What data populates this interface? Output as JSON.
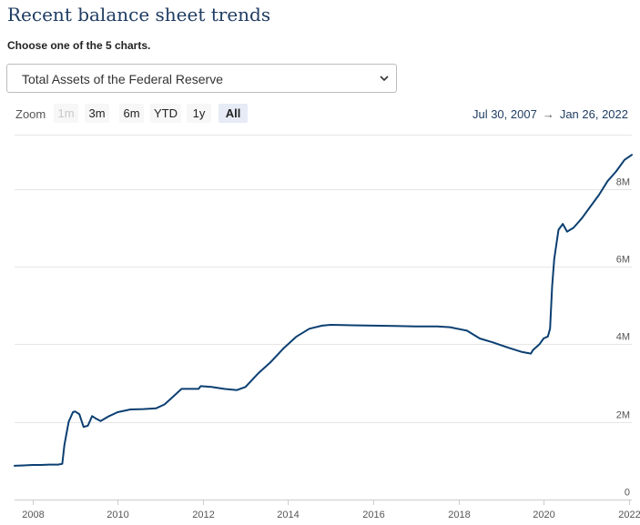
{
  "page": {
    "title": "Recent balance sheet trends",
    "subtitle": "Choose one of the 5 charts."
  },
  "selector": {
    "value": "Total Assets of the Federal Reserve",
    "icon": "chevron-down-icon"
  },
  "zoom": {
    "label": "Zoom",
    "buttons": [
      {
        "label": "1m",
        "state": "disabled"
      },
      {
        "label": "3m",
        "state": "normal"
      },
      {
        "label": "6m",
        "state": "normal"
      },
      {
        "label": "YTD",
        "state": "normal"
      },
      {
        "label": "1y",
        "state": "normal"
      },
      {
        "label": "All",
        "state": "selected"
      }
    ]
  },
  "range": {
    "from": "Jul 30, 2007",
    "arrow": "→",
    "to": "Jan 26, 2022"
  },
  "colors": {
    "line": "#0b3f71",
    "accent": "#1f3c62",
    "grid": "#e6e6e6"
  },
  "chart_data": {
    "type": "line",
    "title": "",
    "xlabel": "",
    "ylabel": "",
    "x_ticks": [
      "2008",
      "2010",
      "2012",
      "2014",
      "2016",
      "2018",
      "2020",
      "2022"
    ],
    "y_ticks": [
      "0",
      "2M",
      "4M",
      "6M",
      "8M"
    ],
    "xlim": [
      2007.58,
      2022.07
    ],
    "ylim": [
      0,
      9400000
    ],
    "grid": true,
    "series": [
      {
        "name": "",
        "x": [
          2007.58,
          2007.8,
          2008.0,
          2008.2,
          2008.4,
          2008.6,
          2008.7,
          2008.75,
          2008.85,
          2008.95,
          2009.0,
          2009.1,
          2009.2,
          2009.3,
          2009.4,
          2009.5,
          2009.6,
          2009.8,
          2010.0,
          2010.3,
          2010.6,
          2010.9,
          2011.1,
          2011.3,
          2011.5,
          2011.9,
          2011.95,
          2012.2,
          2012.5,
          2012.8,
          2013.0,
          2013.3,
          2013.6,
          2013.9,
          2014.2,
          2014.5,
          2014.8,
          2015.0,
          2015.5,
          2016.0,
          2016.5,
          2017.0,
          2017.5,
          2017.8,
          2018.2,
          2018.5,
          2018.8,
          2019.2,
          2019.5,
          2019.7,
          2019.75,
          2019.9,
          2020.0,
          2020.1,
          2020.15,
          2020.2,
          2020.25,
          2020.35,
          2020.45,
          2020.55,
          2020.7,
          2020.9,
          2021.1,
          2021.3,
          2021.5,
          2021.7,
          2021.9,
          2022.07
        ],
        "values": [
          870000,
          880000,
          890000,
          890000,
          900000,
          900000,
          920000,
          1400000,
          2000000,
          2250000,
          2270000,
          2200000,
          1870000,
          1900000,
          2150000,
          2080000,
          2020000,
          2150000,
          2250000,
          2320000,
          2330000,
          2350000,
          2450000,
          2650000,
          2850000,
          2850000,
          2920000,
          2900000,
          2850000,
          2820000,
          2900000,
          3250000,
          3550000,
          3900000,
          4200000,
          4400000,
          4480000,
          4500000,
          4490000,
          4480000,
          4470000,
          4460000,
          4460000,
          4440000,
          4350000,
          4150000,
          4050000,
          3900000,
          3800000,
          3760000,
          3850000,
          4000000,
          4150000,
          4200000,
          4400000,
          5500000,
          6200000,
          6950000,
          7100000,
          6900000,
          7000000,
          7250000,
          7550000,
          7850000,
          8200000,
          8450000,
          8750000,
          8880000
        ]
      }
    ]
  }
}
